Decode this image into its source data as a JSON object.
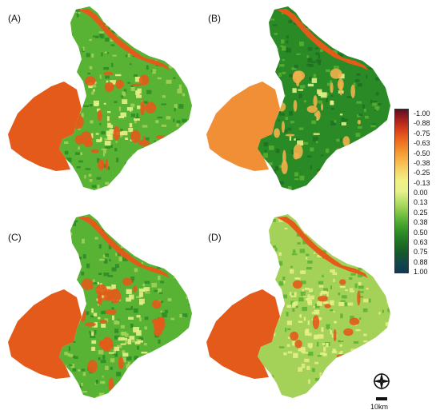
{
  "panels": [
    {
      "label": "(A)",
      "variant": "a"
    },
    {
      "label": "(B)",
      "variant": "b"
    },
    {
      "label": "(C)",
      "variant": "c"
    },
    {
      "label": "(D)",
      "variant": "d"
    }
  ],
  "legend": {
    "ticks": [
      "-1.00",
      "-0.88",
      "-0.75",
      "-0.63",
      "-0.50",
      "-0.38",
      "-0.25",
      "-0.13",
      "0.00",
      "0.13",
      "0.25",
      "0.38",
      "0.50",
      "0.63",
      "0.75",
      "0.88",
      "1.00"
    ],
    "colors": [
      "#5a0f23",
      "#a8201c",
      "#d6401a",
      "#ea6a1e",
      "#f3912c",
      "#f7b547",
      "#f5d669",
      "#f2ef86",
      "#e6f28d",
      "#b8e06a",
      "#86c94b",
      "#52ad33",
      "#2e8f26",
      "#1f7224",
      "#175a27",
      "#12484a",
      "#0d3a52"
    ]
  },
  "colors": {
    "water": "#e45a1a",
    "water_light": "#f08f35",
    "green_dark": "#2a8a26",
    "green_mid": "#58b233",
    "green_light": "#a4d259",
    "yellow": "#e7ef88"
  },
  "compass": {
    "icon": "compass-rose-icon"
  },
  "scale": {
    "label": "10km"
  }
}
